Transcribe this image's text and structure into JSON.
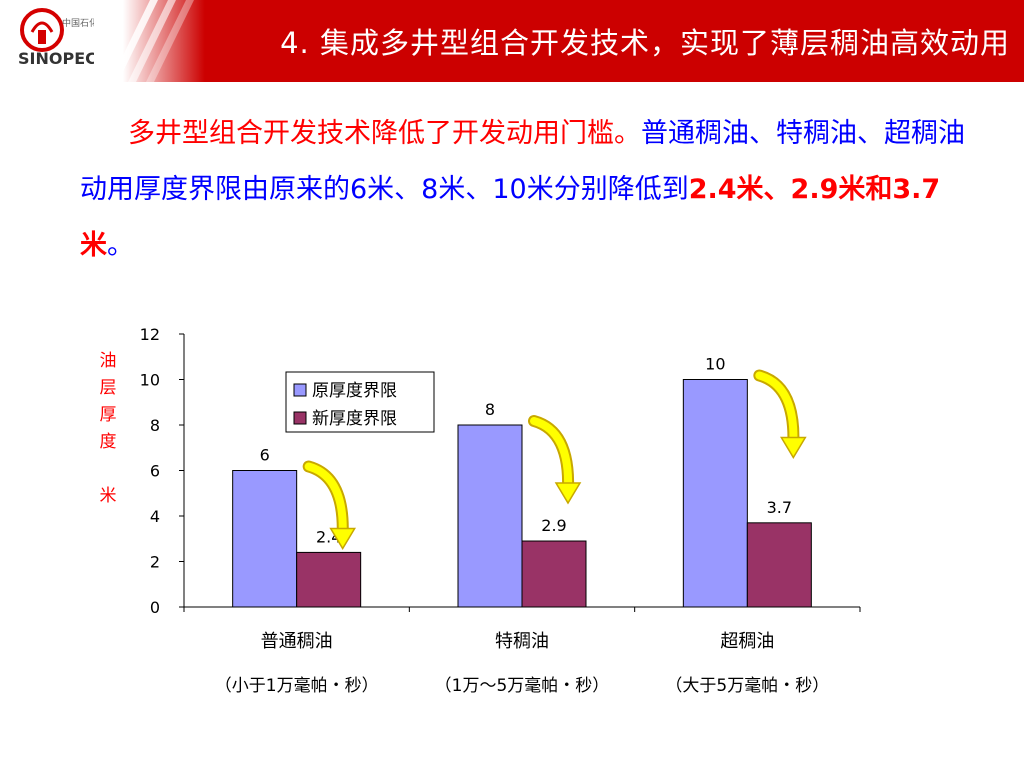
{
  "header": {
    "title": "4.  集成多井型组合开发技术，实现了薄层稠油高效动用",
    "bg_color": "#cc0000",
    "logo_icon": "sinopec-logo"
  },
  "paragraph": {
    "p1": "多井型组合开发技术降低了开发动用门槛。",
    "p2": "普通稠油、特稠油、超稠油动用厚度界限由原来的6米、8米、10米分别降低到",
    "p3": "2.4米、2.9米和3.7米",
    "p4": "。"
  },
  "chart_data": {
    "type": "bar",
    "categories": [
      "普通稠油",
      "特稠油",
      "超稠油"
    ],
    "category_notes": [
      "（小于1万毫帕・秒）",
      "（1万～5万毫帕・秒）",
      "（大于5万毫帕・秒）"
    ],
    "series": [
      {
        "name": "原厚度界限",
        "values": [
          6,
          8,
          10
        ],
        "labels": [
          "6",
          "8",
          "10"
        ],
        "color": "#9999ff"
      },
      {
        "name": "新厚度界限",
        "values": [
          2.4,
          2.9,
          3.7
        ],
        "labels": [
          "2.4",
          "2.9",
          "3.7"
        ],
        "color": "#993366"
      }
    ],
    "ylabel": "油层厚度 米",
    "ylim": [
      0,
      12
    ],
    "yticks": [
      0,
      2,
      4,
      6,
      8,
      10,
      12
    ],
    "grid": false,
    "legend": "top-center",
    "annotations": "yellow curved arrows from original bar to new bar"
  }
}
